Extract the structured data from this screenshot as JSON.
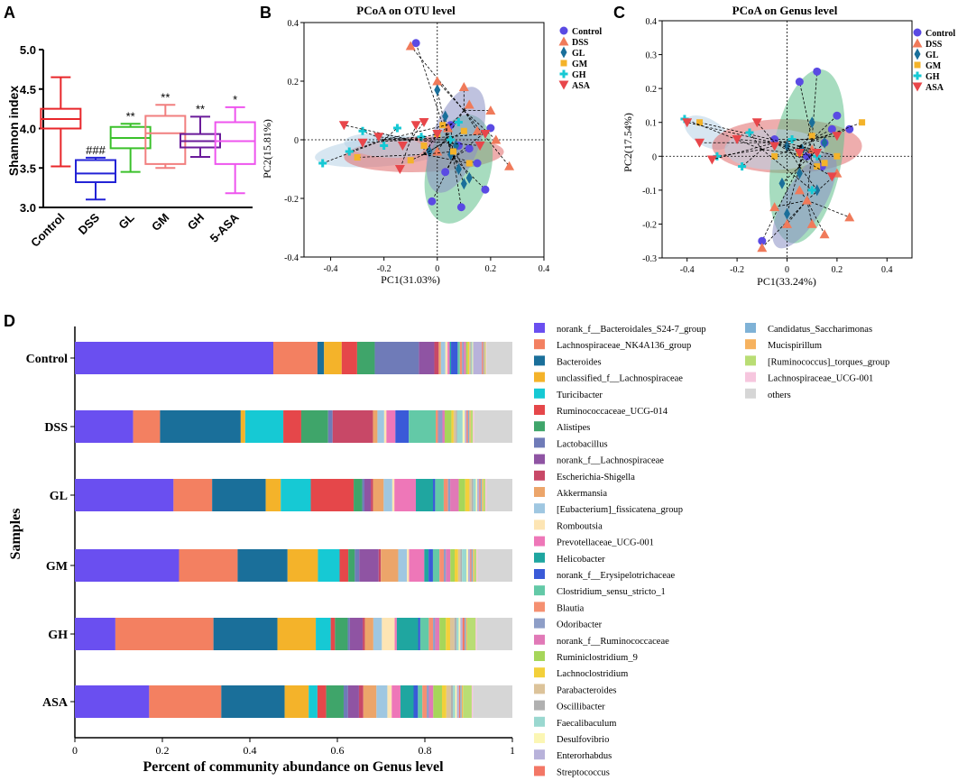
{
  "chart_data": [
    {
      "panel": "A",
      "type": "box",
      "title": "",
      "ylabel": "Shannon index",
      "ylim": [
        3.0,
        5.0
      ],
      "yticks": [
        "3.0",
        "3.5",
        "4.0",
        "4.5",
        "5.0"
      ],
      "categories": [
        "Control",
        "DSS",
        "GL",
        "GM",
        "GH",
        "5-ASA"
      ],
      "colors": [
        "#e8262a",
        "#2323d6",
        "#3bc12b",
        "#f17f7f",
        "#6a1b9a",
        "#ee55ee"
      ],
      "boxes": [
        {
          "min": 3.52,
          "q1": 4.0,
          "median": 4.12,
          "q3": 4.25,
          "max": 4.65,
          "label": ""
        },
        {
          "min": 3.1,
          "q1": 3.32,
          "median": 3.43,
          "q3": 3.6,
          "max": 3.63,
          "label": "###"
        },
        {
          "min": 3.45,
          "q1": 3.75,
          "median": 3.88,
          "q3": 4.02,
          "max": 4.06,
          "label": "**"
        },
        {
          "min": 3.5,
          "q1": 3.55,
          "median": 3.94,
          "q3": 4.16,
          "max": 4.3,
          "label": "**"
        },
        {
          "min": 3.64,
          "q1": 3.76,
          "median": 3.84,
          "q3": 3.93,
          "max": 4.15,
          "label": "**"
        },
        {
          "min": 3.18,
          "q1": 3.55,
          "median": 3.84,
          "q3": 4.08,
          "max": 4.27,
          "label": "*"
        }
      ]
    },
    {
      "panel": "B",
      "type": "scatter",
      "title": "PCoA on OTU level",
      "xlabel": "PC1(31.03%)",
      "ylabel": "PC2(15.81%)",
      "xlim": [
        -0.5,
        0.4
      ],
      "ylim": [
        -0.4,
        0.4
      ],
      "xticks": [
        "-0.4",
        "-0.2",
        "0",
        "0.2",
        "0.4"
      ],
      "yticks": [
        "-0.4",
        "-0.2",
        "0",
        "0.2",
        "0.4"
      ],
      "legend": [
        "Control",
        "DSS",
        "GL",
        "GM",
        "GH",
        "ASA"
      ],
      "series": [
        {
          "name": "Control",
          "points": [
            [
              -0.08,
              0.33
            ],
            [
              0.05,
              0.05
            ],
            [
              0.08,
              -0.02
            ],
            [
              0.12,
              -0.03
            ],
            [
              0.15,
              -0.08
            ],
            [
              0.18,
              -0.17
            ],
            [
              -0.02,
              -0.21
            ],
            [
              0.09,
              -0.23
            ],
            [
              0.03,
              -0.11
            ],
            [
              0.2,
              0.04
            ]
          ],
          "centroid": [
            0.06,
            -0.06
          ]
        },
        {
          "name": "DSS",
          "points": [
            [
              -0.1,
              0.32
            ],
            [
              0.0,
              0.2
            ],
            [
              0.1,
              0.18
            ],
            [
              0.12,
              0.12
            ],
            [
              0.04,
              0.04
            ],
            [
              0.15,
              0.03
            ],
            [
              0.22,
              0.0
            ],
            [
              0.2,
              0.1
            ],
            [
              0.27,
              -0.09
            ],
            [
              0.0,
              -0.04
            ]
          ],
          "centroid": [
            0.1,
            0.1
          ]
        },
        {
          "name": "GL",
          "points": [
            [
              0.0,
              0.17
            ],
            [
              0.03,
              0.08
            ],
            [
              0.05,
              -0.05
            ],
            [
              0.08,
              -0.1
            ],
            [
              0.1,
              -0.15
            ],
            [
              0.12,
              -0.13
            ],
            [
              -0.03,
              -0.04
            ],
            [
              0.07,
              -0.02
            ]
          ],
          "centroid": [
            0.04,
            0.0
          ]
        },
        {
          "name": "GM",
          "points": [
            [
              -0.3,
              -0.06
            ],
            [
              -0.1,
              -0.07
            ],
            [
              0.0,
              0.02
            ],
            [
              0.06,
              -0.04
            ],
            [
              0.12,
              -0.08
            ],
            [
              0.02,
              0.05
            ],
            [
              -0.05,
              -0.02
            ],
            [
              0.1,
              0.03
            ]
          ],
          "centroid": [
            -0.05,
            -0.05
          ]
        },
        {
          "name": "GH",
          "points": [
            [
              -0.43,
              -0.08
            ],
            [
              -0.33,
              -0.04
            ],
            [
              -0.28,
              0.03
            ],
            [
              -0.15,
              0.04
            ],
            [
              -0.2,
              -0.02
            ],
            [
              -0.06,
              0.01
            ],
            [
              0.05,
              0.0
            ],
            [
              0.08,
              0.06
            ]
          ],
          "centroid": [
            -0.2,
            0.0
          ]
        },
        {
          "name": "ASA",
          "points": [
            [
              -0.35,
              0.05
            ],
            [
              -0.28,
              -0.01
            ],
            [
              -0.22,
              0.01
            ],
            [
              -0.13,
              -0.02
            ],
            [
              -0.14,
              -0.1
            ],
            [
              0.0,
              0.02
            ],
            [
              -0.08,
              0.05
            ],
            [
              -0.05,
              0.06
            ],
            [
              0.16,
              -0.02
            ],
            [
              0.18,
              0.02
            ]
          ],
          "centroid": [
            -0.1,
            0.0
          ]
        }
      ]
    },
    {
      "panel": "C",
      "type": "scatter",
      "title": "PCoA on Genus level",
      "xlabel": "PC1(33.24%)",
      "ylabel": "PC2(17.54%)",
      "xlim": [
        -0.5,
        0.5
      ],
      "ylim": [
        -0.3,
        0.4
      ],
      "xticks": [
        "-0.4",
        "-0.2",
        "0",
        "0.2",
        "0.4"
      ],
      "yticks": [
        "-0.3",
        "-0.2",
        "-0.1",
        "0",
        "0.1",
        "0.2",
        "0.3",
        "0.4"
      ],
      "legend": [
        "Control",
        "DSS",
        "GL",
        "GM",
        "GH",
        "ASA"
      ],
      "series": [
        {
          "name": "Control",
          "points": [
            [
              0.05,
              0.22
            ],
            [
              0.12,
              0.25
            ],
            [
              0.2,
              0.12
            ],
            [
              0.18,
              0.08
            ],
            [
              0.25,
              0.08
            ],
            [
              0.15,
              0.04
            ],
            [
              -0.1,
              -0.25
            ],
            [
              0.08,
              0.0
            ],
            [
              -0.05,
              0.05
            ],
            [
              0.14,
              -0.03
            ]
          ],
          "centroid": [
            0.1,
            0.05
          ]
        },
        {
          "name": "DSS",
          "points": [
            [
              -0.1,
              -0.27
            ],
            [
              0.0,
              -0.2
            ],
            [
              0.05,
              -0.1
            ],
            [
              0.1,
              -0.2
            ],
            [
              0.15,
              -0.23
            ],
            [
              0.2,
              -0.05
            ],
            [
              0.25,
              -0.18
            ],
            [
              0.1,
              0.02
            ],
            [
              -0.05,
              -0.15
            ],
            [
              0.08,
              -0.13
            ]
          ],
          "centroid": [
            0.08,
            -0.13
          ]
        },
        {
          "name": "GL",
          "points": [
            [
              0.0,
              -0.17
            ],
            [
              0.05,
              -0.05
            ],
            [
              0.1,
              0.1
            ],
            [
              0.15,
              0.04
            ],
            [
              0.0,
              0.03
            ],
            [
              0.06,
              0.02
            ],
            [
              0.12,
              -0.1
            ],
            [
              -0.02,
              -0.08
            ]
          ],
          "centroid": [
            0.05,
            -0.03
          ]
        },
        {
          "name": "GM",
          "points": [
            [
              -0.35,
              0.1
            ],
            [
              0.05,
              0.01
            ],
            [
              0.12,
              -0.03
            ],
            [
              0.2,
              0.0
            ],
            [
              0.3,
              0.1
            ],
            [
              -0.05,
              0.0
            ],
            [
              0.1,
              0.06
            ],
            [
              0.15,
              -0.02
            ]
          ],
          "centroid": [
            0.05,
            0.03
          ]
        },
        {
          "name": "GH",
          "points": [
            [
              -0.41,
              0.11
            ],
            [
              -0.28,
              0.0
            ],
            [
              -0.18,
              -0.03
            ],
            [
              -0.15,
              0.07
            ],
            [
              0.02,
              0.05
            ],
            [
              0.12,
              0.0
            ],
            [
              0.1,
              -0.1
            ]
          ],
          "centroid": [
            -0.1,
            0.02
          ]
        },
        {
          "name": "ASA",
          "points": [
            [
              -0.4,
              0.1
            ],
            [
              -0.35,
              0.04
            ],
            [
              -0.3,
              -0.01
            ],
            [
              -0.12,
              0.1
            ],
            [
              -0.05,
              0.03
            ],
            [
              0.05,
              0.01
            ],
            [
              0.12,
              0.01
            ],
            [
              0.18,
              -0.06
            ],
            [
              0.2,
              0.06
            ],
            [
              -0.2,
              0.05
            ]
          ],
          "centroid": [
            -0.05,
            0.04
          ]
        }
      ]
    },
    {
      "panel": "D",
      "type": "stacked-bar-horizontal",
      "xlabel": "Percent of community abundance on Genus level",
      "ylabel": "Samples",
      "xlim": [
        0,
        1
      ],
      "xticks": [
        "0",
        "0.2",
        "0.4",
        "0.6",
        "0.8",
        "1"
      ],
      "categories": [
        "Control",
        "DSS",
        "GL",
        "GM",
        "GH",
        "ASA"
      ],
      "legend": [
        {
          "name": "norank_f__Bacteroidales_S24-7_group",
          "color": "#6a4ff0"
        },
        {
          "name": "Lachnospiraceae_NK4A136_group",
          "color": "#f38061"
        },
        {
          "name": "Bacteroides",
          "color": "#1a6f9a"
        },
        {
          "name": "unclassified_f__Lachnospiraceae",
          "color": "#f4b32a"
        },
        {
          "name": "Turicibacter",
          "color": "#16c9d4"
        },
        {
          "name": "Ruminococcaceae_UCG-014",
          "color": "#e5474a"
        },
        {
          "name": "Alistipes",
          "color": "#3fa56a"
        },
        {
          "name": "Lactobacillus",
          "color": "#6f7bb8"
        },
        {
          "name": "norank_f__Lachnospiraceae",
          "color": "#8f54a3"
        },
        {
          "name": "Escherichia-Shigella",
          "color": "#c84867"
        },
        {
          "name": "Akkermansia",
          "color": "#eca56a"
        },
        {
          "name": "[Eubacterium]_fissicatena_group",
          "color": "#9fc7e1"
        },
        {
          "name": "Romboutsia",
          "color": "#fde5b4"
        },
        {
          "name": "Prevotellaceae_UCG-001",
          "color": "#ee77b8"
        },
        {
          "name": "Helicobacter",
          "color": "#1fa6a0"
        },
        {
          "name": "norank_f__Erysipelotrichaceae",
          "color": "#3a5ad8"
        },
        {
          "name": "Clostridium_sensu_stricto_1",
          "color": "#63c9a7"
        },
        {
          "name": "Blautia",
          "color": "#f59071"
        },
        {
          "name": "Odoribacter",
          "color": "#8e9ec7"
        },
        {
          "name": "norank_f__Ruminococcaceae",
          "color": "#e179b7"
        },
        {
          "name": "Ruminiclostridium_9",
          "color": "#a6d65a"
        },
        {
          "name": "Lachnoclostridium",
          "color": "#f3d03a"
        },
        {
          "name": "Parabacteroides",
          "color": "#dcc39a"
        },
        {
          "name": "Oscillibacter",
          "color": "#b0b0b0"
        },
        {
          "name": "Faecalibaculum",
          "color": "#9ad8d0"
        },
        {
          "name": "Desulfovibrio",
          "color": "#fbf6b4"
        },
        {
          "name": "Enterorhabdus",
          "color": "#b8b2da"
        },
        {
          "name": "Streptococcus",
          "color": "#f37766"
        },
        {
          "name": "Candidatus_Saccharimonas",
          "color": "#7fb2d6"
        },
        {
          "name": "Mucispirillum",
          "color": "#f6b25f"
        },
        {
          "name": "[Ruminococcus]_torques_group",
          "color": "#b9dd74"
        },
        {
          "name": "Lachnospiraceae_UCG-001",
          "color": "#f6c6de"
        },
        {
          "name": "others",
          "color": "#d6d6d6"
        }
      ],
      "series_values": {
        "Control": [
          0.45,
          0.1,
          0.015,
          0.04,
          0.0,
          0.035,
          0.04,
          0.1,
          0.035,
          0.01,
          0.005,
          0.01,
          0.005,
          0.005,
          0.003,
          0.015,
          0.005,
          0.005,
          0.004,
          0.005,
          0.004,
          0.003,
          0.003,
          0.002,
          0.002,
          0.002,
          0.02,
          0.003,
          0.002,
          0.002,
          0.002,
          0.002,
          0.058
        ],
        "DSS": [
          0.13,
          0.06,
          0.18,
          0.01,
          0.085,
          0.04,
          0.06,
          0.01,
          0.0,
          0.09,
          0.01,
          0.015,
          0.005,
          0.02,
          0.0,
          0.03,
          0.06,
          0.005,
          0.01,
          0.005,
          0.015,
          0.005,
          0.005,
          0.003,
          0.012,
          0.005,
          0.004,
          0.003,
          0.003,
          0.003,
          0.005,
          0.003,
          0.085
        ],
        "GL": [
          0.23,
          0.09,
          0.125,
          0.035,
          0.07,
          0.1,
          0.02,
          0.005,
          0.015,
          0.005,
          0.025,
          0.02,
          0.005,
          0.05,
          0.04,
          0.005,
          0.02,
          0.01,
          0.005,
          0.02,
          0.015,
          0.01,
          0.005,
          0.004,
          0.006,
          0.003,
          0.005,
          0.003,
          0.003,
          0.003,
          0.005,
          0.003,
          0.06
        ],
        "GM": [
          0.24,
          0.135,
          0.115,
          0.07,
          0.05,
          0.02,
          0.015,
          0.01,
          0.045,
          0.005,
          0.04,
          0.02,
          0.005,
          0.035,
          0.01,
          0.01,
          0.015,
          0.01,
          0.005,
          0.01,
          0.01,
          0.008,
          0.005,
          0.004,
          0.01,
          0.004,
          0.005,
          0.003,
          0.003,
          0.003,
          0.005,
          0.003,
          0.08
        ],
        "GH": [
          0.095,
          0.23,
          0.15,
          0.09,
          0.035,
          0.01,
          0.03,
          0.005,
          0.03,
          0.005,
          0.02,
          0.02,
          0.03,
          0.005,
          0.05,
          0.005,
          0.02,
          0.01,
          0.005,
          0.01,
          0.015,
          0.01,
          0.01,
          0.005,
          0.005,
          0.004,
          0.005,
          0.005,
          0.003,
          0.003,
          0.02,
          0.003,
          0.083
        ],
        "ASA": [
          0.17,
          0.165,
          0.145,
          0.055,
          0.02,
          0.02,
          0.04,
          0.01,
          0.025,
          0.01,
          0.03,
          0.025,
          0.01,
          0.02,
          0.03,
          0.01,
          0.01,
          0.01,
          0.005,
          0.01,
          0.02,
          0.01,
          0.01,
          0.005,
          0.005,
          0.004,
          0.005,
          0.003,
          0.003,
          0.003,
          0.02,
          0.003,
          0.09
        ]
      }
    }
  ],
  "panel_labels": [
    "A",
    "B",
    "C",
    "D"
  ],
  "marker_colors": {
    "Control": "#5a4ae3",
    "DSS": "#f07a5a",
    "GL": "#1a6f9a",
    "GM": "#f4b32a",
    "GH": "#16c9d4",
    "ASA": "#e8464a"
  },
  "ellipse_colors": {
    "Control": "#8a8fc4",
    "DSS": "#f2c090",
    "GL": "#5fbf8a",
    "GM": "#b7d2e6",
    "GH": "#b7d2e6",
    "ASA": "#e06a6a"
  }
}
